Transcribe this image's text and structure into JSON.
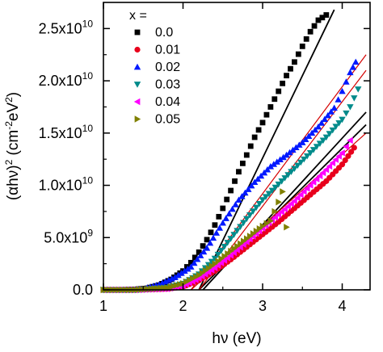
{
  "chart_data": {
    "type": "scatter",
    "xlabel": "hν (eV)",
    "ylabel": "(αhν)",
    "ylabel_sup1": "2",
    "ylabel_units": " (cm",
    "ylabel_sup2": "-2",
    "ylabel_units2": "eV",
    "ylabel_sup3": "2",
    "ylabel_close": ")",
    "xlim": [
      1.0,
      4.35
    ],
    "ylim": [
      0,
      27500000000.0
    ],
    "x_ticks": [
      1,
      2,
      3,
      4
    ],
    "x_tick_labels": [
      "1",
      "2",
      "3",
      "4"
    ],
    "y_ticks": [
      0,
      5000000000.0,
      10000000000.0,
      15000000000.0,
      20000000000.0,
      25000000000.0
    ],
    "y_tick_labels": [
      {
        "base": "0.0",
        "exp": ""
      },
      {
        "base": "5.0x10",
        "exp": "9"
      },
      {
        "base": "1.0x10",
        "exp": "10"
      },
      {
        "base": "1.5x10",
        "exp": "10"
      },
      {
        "base": "2.0x10",
        "exp": "10"
      },
      {
        "base": "2.5x10",
        "exp": "10"
      }
    ],
    "legend_title": "x =",
    "legend_position": "top-left",
    "grid": false,
    "series": [
      {
        "name": "0.0",
        "color": "#000000",
        "marker": "square",
        "x": [
          1.0,
          1.2,
          1.4,
          1.55,
          1.7,
          1.85,
          2.0,
          2.1,
          2.2,
          2.3,
          2.4,
          2.5,
          2.6,
          2.7,
          2.8,
          2.9,
          3.0,
          3.1,
          3.2,
          3.3,
          3.4,
          3.5,
          3.6,
          3.7,
          3.8
        ],
        "y": [
          0.0,
          0.0,
          50000000.0,
          150000000.0,
          450000000.0,
          1000000000.0,
          1800000000.0,
          2600000000.0,
          3600000000.0,
          4800000000.0,
          6200000000.0,
          7800000000.0,
          9500000000.0,
          11300000000.0,
          12900000000.0,
          14600000000.0,
          16000000000.0,
          17500000000.0,
          19000000000.0,
          20500000000.0,
          21800000000.0,
          23300000000.0,
          24700000000.0,
          25800000000.0,
          26300000000.0
        ]
      },
      {
        "name": "0.01",
        "color": "#e8001c",
        "marker": "circle",
        "x": [
          1.0,
          1.4,
          1.8,
          2.0,
          2.2,
          2.4,
          2.6,
          2.8,
          3.0,
          3.2,
          3.4,
          3.6,
          3.8,
          4.0,
          4.15
        ],
        "y": [
          0.0,
          0.0,
          100000000.0,
          300000000.0,
          900000000.0,
          1800000000.0,
          2900000000.0,
          4100000000.0,
          5300000000.0,
          6500000000.0,
          7800000000.0,
          9100000000.0,
          10400000000.0,
          12000000000.0,
          13600000000.0
        ]
      },
      {
        "name": "0.02",
        "color": "#0019ff",
        "marker": "triangle-up",
        "x": [
          1.55,
          1.7,
          1.9,
          2.1,
          2.3,
          2.5,
          2.7,
          2.9,
          3.1,
          3.3,
          3.5,
          3.7,
          3.9,
          4.0,
          4.1,
          4.17
        ],
        "y": [
          200000000.0,
          500000000.0,
          1200000000.0,
          2200000000.0,
          4000000000.0,
          6400000000.0,
          8600000000.0,
          10300000000.0,
          11800000000.0,
          12900000000.0,
          14100000000.0,
          15600000000.0,
          17400000000.0,
          19000000000.0,
          20800000000.0,
          21800000000.0
        ]
      },
      {
        "name": "0.03",
        "color": "#008b8b",
        "marker": "triangle-down",
        "x": [
          1.0,
          1.4,
          1.8,
          2.0,
          2.2,
          2.4,
          2.6,
          2.8,
          3.0,
          3.2,
          3.4,
          3.6,
          3.8,
          4.0,
          4.1,
          4.2
        ],
        "y": [
          0.0,
          0.0,
          200000000.0,
          600000000.0,
          1500000000.0,
          3000000000.0,
          4900000000.0,
          6800000000.0,
          8600000000.0,
          10100000000.0,
          11600000000.0,
          13100000000.0,
          14600000000.0,
          16300000000.0,
          17500000000.0,
          19200000000.0
        ]
      },
      {
        "name": "0.04",
        "color": "#ff00ff",
        "marker": "triangle-left",
        "x": [
          1.0,
          1.4,
          1.8,
          2.0,
          2.2,
          2.4,
          2.6,
          2.8,
          3.0,
          3.2,
          3.4,
          3.6,
          3.8,
          4.0,
          4.1
        ],
        "y": [
          0.0,
          0.0,
          100000000.0,
          400000000.0,
          1100000000.0,
          2100000000.0,
          3300000000.0,
          4600000000.0,
          5900000000.0,
          7200000000.0,
          8500000000.0,
          10000000000.0,
          11500000000.0,
          13100000000.0,
          14300000000.0
        ]
      },
      {
        "name": "0.05",
        "color": "#808000",
        "marker": "triangle-right",
        "x": [
          1.0,
          1.4,
          1.8,
          2.0,
          2.2,
          2.4,
          2.6,
          2.8,
          3.0,
          3.1,
          3.2,
          3.25,
          3.3
        ],
        "y": [
          0.0,
          0.0,
          200000000.0,
          600000000.0,
          1400000000.0,
          2500000000.0,
          3700000000.0,
          4900000000.0,
          6100000000.0,
          6600000000.0,
          8400000000.0,
          9400000000.0,
          6000000000.0
        ]
      }
    ],
    "fit_lines": [
      {
        "color": "#000000",
        "x": [
          2.2,
          3.9
        ],
        "y": [
          0,
          26800000000.0
        ]
      },
      {
        "color": "#000000",
        "x": [
          2.25,
          4.3
        ],
        "y": [
          0,
          17000000000.0
        ]
      },
      {
        "color": "#000000",
        "x": [
          2.2,
          4.3
        ],
        "y": [
          0,
          15800000000.0
        ]
      },
      {
        "color": "#d40000",
        "x": [
          2.1,
          4.3
        ],
        "y": [
          0,
          22500000000.0
        ]
      },
      {
        "color": "#d40000",
        "x": [
          2.2,
          4.3
        ],
        "y": [
          0,
          21000000000.0
        ]
      },
      {
        "color": "#d40000",
        "x": [
          2.1,
          4.3
        ],
        "y": [
          0,
          15000000000.0
        ]
      }
    ]
  }
}
